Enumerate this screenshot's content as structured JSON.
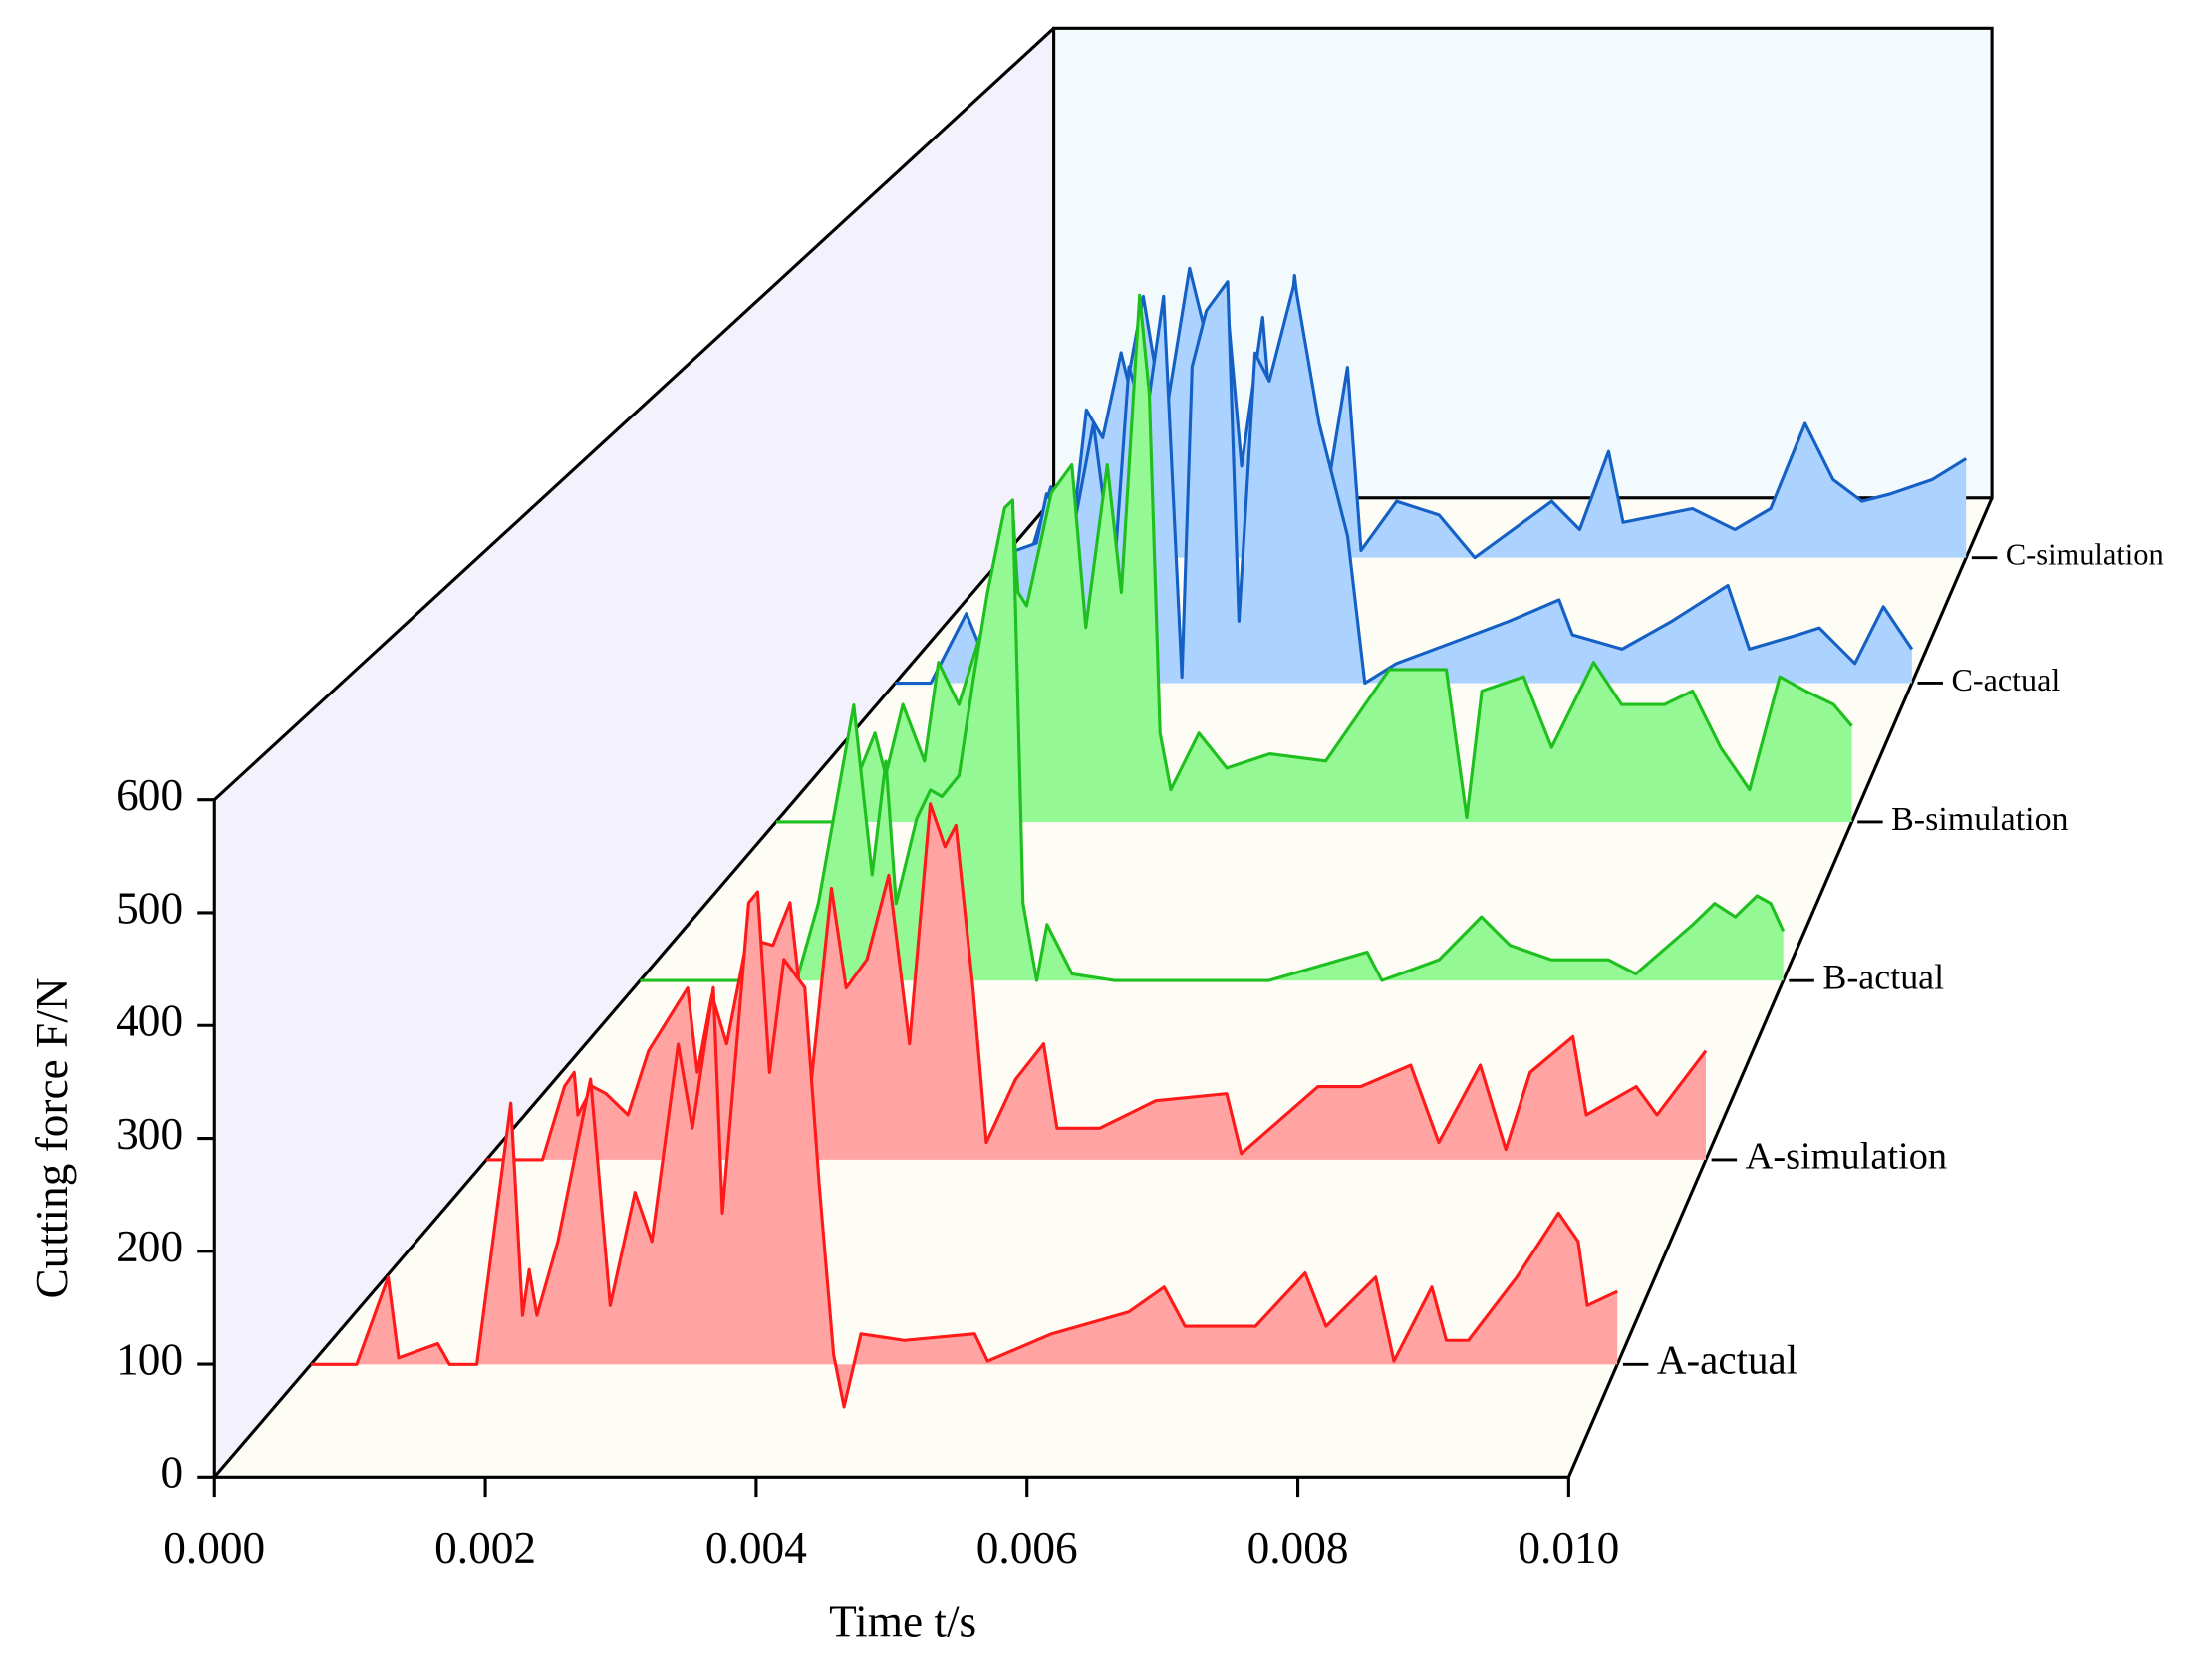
{
  "chart_data": {
    "type": "waterfall",
    "x_label": "Time t/s",
    "y_label": "Cutting force F/N",
    "xlim": [
      0,
      0.01
    ],
    "xticks": [
      {
        "value": 0,
        "label": "0.000"
      },
      {
        "value": 0.002,
        "label": "0.002"
      },
      {
        "value": 0.004,
        "label": "0.004"
      },
      {
        "value": 0.006,
        "label": "0.006"
      },
      {
        "value": 0.008,
        "label": "0.008"
      },
      {
        "value": 0.01,
        "label": "0.010"
      }
    ],
    "ylim": [
      0,
      600
    ],
    "yticks": [
      0,
      100,
      200,
      300,
      400,
      500,
      600
    ],
    "series": [
      {
        "name": "A-actual",
        "color": "#ff1a1a",
        "fill_color": "#ffa3a3",
        "x": [
          0,
          0.00035,
          0.00059,
          0.00067,
          0.00097,
          0.00106,
          0.00127,
          0.00153,
          0.00162,
          0.00167,
          0.00173,
          0.00189,
          0.00214,
          0.00229,
          0.00248,
          0.00261,
          0.00281,
          0.00292,
          0.00308,
          0.00315,
          0.00335,
          0.00342,
          0.00351,
          0.00362,
          0.00378,
          0.00389,
          0.004,
          0.00408,
          0.00421,
          0.00454,
          0.00508,
          0.00518,
          0.00567,
          0.00626,
          0.00653,
          0.00669,
          0.00723,
          0.00761,
          0.00777,
          0.00815,
          0.00829,
          0.00858,
          0.00869,
          0.00886,
          0.00923,
          0.00955,
          0.0097,
          0.00977,
          0.01
        ],
        "values": [
          0,
          0,
          80,
          6,
          19,
          0,
          0,
          240,
          45,
          87,
          45,
          113,
          262,
          54,
          158,
          113,
          294,
          217,
          346,
          139,
          424,
          434,
          268,
          372,
          346,
          165,
          9,
          -39,
          28,
          22,
          28,
          3,
          28,
          48,
          71,
          35,
          35,
          84,
          35,
          80,
          3,
          71,
          22,
          22,
          80,
          139,
          113,
          54,
          67
        ]
      },
      {
        "name": "A-simulation",
        "color": "#ff1a1a",
        "fill_color": "#ffa3a3",
        "x": [
          0,
          0.00046,
          0.00064,
          0.00072,
          0.00075,
          0.00087,
          0.00098,
          0.00116,
          0.00133,
          0.00165,
          0.00173,
          0.00185,
          0.00197,
          0.00214,
          0.00235,
          0.00249,
          0.00266,
          0.00283,
          0.00295,
          0.00312,
          0.0033,
          0.00347,
          0.00364,
          0.00376,
          0.00385,
          0.00399,
          0.0041,
          0.00434,
          0.00457,
          0.00468,
          0.00503,
          0.00549,
          0.00607,
          0.00619,
          0.00682,
          0.00717,
          0.00758,
          0.00781,
          0.00815,
          0.00836,
          0.00856,
          0.00891,
          0.00902,
          0.00943,
          0.0096,
          0.01
        ],
        "values": [
          0,
          0,
          72,
          86,
          44,
          72,
          65,
          44,
          107,
          169,
          86,
          162,
          114,
          218,
          211,
          253,
          72,
          267,
          169,
          197,
          280,
          114,
          350,
          308,
          329,
          169,
          17,
          79,
          114,
          31,
          31,
          58,
          65,
          6,
          72,
          72,
          93,
          17,
          93,
          10,
          86,
          121,
          44,
          72,
          44,
          107
        ]
      },
      {
        "name": "B-actual",
        "color": "#1fbf1f",
        "fill_color": "#94f894",
        "x": [
          0,
          0.00137,
          0.00156,
          0.00187,
          0.00203,
          0.00215,
          0.00224,
          0.00242,
          0.00254,
          0.00264,
          0.00279,
          0.00292,
          0.00304,
          0.00319,
          0.00326,
          0.00335,
          0.00347,
          0.00356,
          0.00378,
          0.00415,
          0.0055,
          0.00636,
          0.00649,
          0.00699,
          0.00736,
          0.00761,
          0.00797,
          0.00847,
          0.00871,
          0.00921,
          0.0094,
          0.00958,
          0.00977,
          0.00989,
          0.01
        ],
        "values": [
          0,
          0,
          81,
          289,
          111,
          230,
          81,
          170,
          200,
          193,
          215,
          319,
          407,
          496,
          504,
          81,
          0,
          59,
          7,
          0,
          0,
          30,
          0,
          22,
          67,
          37,
          22,
          22,
          7,
          59,
          81,
          67,
          89,
          81,
          52
        ]
      },
      {
        "name": "B-simulation",
        "color": "#1fbf1f",
        "fill_color": "#94f894",
        "x": [
          0,
          0.00059,
          0.00092,
          0.00102,
          0.00118,
          0.00138,
          0.00151,
          0.0017,
          0.0019,
          0.00203,
          0.00212,
          0.0022,
          0.00225,
          0.00233,
          0.00256,
          0.00275,
          0.00288,
          0.00308,
          0.00321,
          0.00338,
          0.00347,
          0.00357,
          0.00367,
          0.00393,
          0.00419,
          0.00459,
          0.00511,
          0.0057,
          0.00623,
          0.00642,
          0.00656,
          0.00695,
          0.00721,
          0.0076,
          0.00786,
          0.00826,
          0.00852,
          0.00878,
          0.00905,
          0.00933,
          0.00957,
          0.00983,
          0.01
        ],
        "values": [
          0,
          0,
          99,
          52,
          131,
          68,
          178,
          131,
          209,
          225,
          304,
          351,
          256,
          241,
          367,
          398,
          217,
          398,
          256,
          587,
          477,
          99,
          36,
          99,
          60,
          76,
          68,
          170,
          170,
          5,
          146,
          162,
          83,
          178,
          131,
          131,
          146,
          83,
          36,
          162,
          146,
          131,
          107
        ]
      },
      {
        "name": "C-actual",
        "color": "#1560c4",
        "fill_color": "#acd2ff",
        "x": [
          0,
          0.00035,
          0.0007,
          0.0009,
          0.00118,
          0.00139,
          0.00149,
          0.00174,
          0.00195,
          0.00215,
          0.0023,
          0.00246,
          0.00264,
          0.00282,
          0.00292,
          0.00306,
          0.00327,
          0.00338,
          0.00354,
          0.00368,
          0.00393,
          0.00417,
          0.00445,
          0.00462,
          0.00493,
          0.00549,
          0.00604,
          0.00653,
          0.00666,
          0.00715,
          0.00764,
          0.00819,
          0.0084,
          0.00888,
          0.00909,
          0.00944,
          0.00972,
          0.01
        ],
        "values": [
          0,
          0,
          82,
          23,
          156,
          165,
          223,
          173,
          306,
          123,
          373,
          306,
          456,
          7,
          373,
          439,
          473,
          73,
          389,
          356,
          473,
          306,
          173,
          0,
          23,
          48,
          73,
          98,
          57,
          40,
          73,
          115,
          40,
          57,
          65,
          23,
          90,
          40
        ]
      },
      {
        "name": "C-simulation",
        "color": "#1560c4",
        "fill_color": "#acd2ff",
        "x": [
          0,
          0.00028,
          0.0005,
          0.00072,
          0.00087,
          0.00104,
          0.00123,
          0.0013,
          0.00146,
          0.00168,
          0.00194,
          0.00212,
          0.00233,
          0.00248,
          0.0027,
          0.00284,
          0.00303,
          0.00324,
          0.00339,
          0.00358,
          0.00372,
          0.00409,
          0.00453,
          0.0049,
          0.0057,
          0.00599,
          0.00629,
          0.00644,
          0.00716,
          0.0076,
          0.00797,
          0.00833,
          0.00862,
          0.00892,
          0.00921,
          0.00965,
          0.01
        ],
        "values": [
          0,
          0,
          88,
          26,
          184,
          149,
          255,
          220,
          325,
          167,
          360,
          272,
          316,
          114,
          299,
          97,
          351,
          132,
          97,
          237,
          9,
          70,
          53,
          0,
          70,
          35,
          132,
          44,
          61,
          35,
          61,
          167,
          97,
          70,
          79,
          97,
          123
        ]
      }
    ]
  }
}
